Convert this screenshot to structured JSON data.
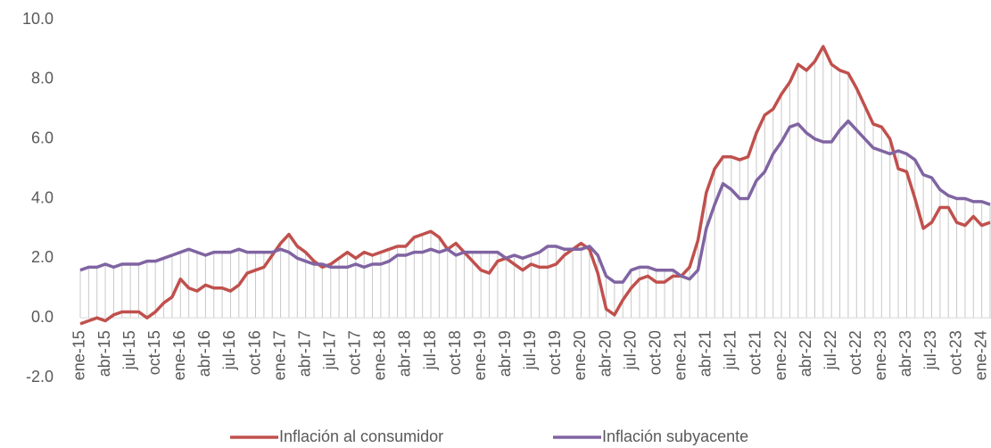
{
  "chart_data": {
    "type": "line",
    "categories": [
      "ene-15",
      null,
      null,
      "abr-15",
      null,
      null,
      "jul-15",
      null,
      null,
      "oct-15",
      null,
      null,
      "ene-16",
      null,
      null,
      "abr-16",
      null,
      null,
      "jul-16",
      null,
      null,
      "oct-16",
      null,
      null,
      "ene-17",
      null,
      null,
      "abr-17",
      null,
      null,
      "jul-17",
      null,
      null,
      "oct-17",
      null,
      null,
      "ene-18",
      null,
      null,
      "abr-18",
      null,
      null,
      "jul-18",
      null,
      null,
      "oct-18",
      null,
      null,
      "ene-19",
      null,
      null,
      "abr-19",
      null,
      null,
      "jul-19",
      null,
      null,
      "oct-19",
      null,
      null,
      "ene-20",
      null,
      null,
      "abr-20",
      null,
      null,
      "jul-20",
      null,
      null,
      "oct-20",
      null,
      null,
      "ene-21",
      null,
      null,
      "abr-21",
      null,
      null,
      "jul-21",
      null,
      null,
      "oct-21",
      null,
      null,
      "ene-22",
      null,
      null,
      "abr-22",
      null,
      null,
      "jul-22",
      null,
      null,
      "oct-22",
      null,
      null,
      "ene-23",
      null,
      null,
      "abr-23",
      null,
      null,
      "jul-23",
      null,
      null,
      "oct-23",
      null,
      null,
      "ene-24",
      null
    ],
    "series": [
      {
        "name": "Inflación al consumidor",
        "color": "#c0504d",
        "values": [
          -0.2,
          -0.1,
          0.0,
          -0.1,
          0.1,
          0.2,
          0.2,
          0.2,
          0.0,
          0.2,
          0.5,
          0.7,
          1.3,
          1.0,
          0.9,
          1.1,
          1.0,
          1.0,
          0.9,
          1.1,
          1.5,
          1.6,
          1.7,
          2.1,
          2.5,
          2.8,
          2.4,
          2.2,
          1.9,
          1.7,
          1.8,
          2.0,
          2.2,
          2.0,
          2.2,
          2.1,
          2.2,
          2.3,
          2.4,
          2.4,
          2.7,
          2.8,
          2.9,
          2.7,
          2.3,
          2.5,
          2.2,
          1.9,
          1.6,
          1.5,
          1.9,
          2.0,
          1.8,
          1.6,
          1.8,
          1.7,
          1.7,
          1.8,
          2.1,
          2.3,
          2.5,
          2.3,
          1.5,
          0.3,
          0.1,
          0.6,
          1.0,
          1.3,
          1.4,
          1.2,
          1.2,
          1.4,
          1.4,
          1.7,
          2.6,
          4.2,
          5.0,
          5.4,
          5.4,
          5.3,
          5.4,
          6.2,
          6.8,
          7.0,
          7.5,
          7.9,
          8.5,
          8.3,
          8.6,
          9.1,
          8.5,
          8.3,
          8.2,
          7.7,
          7.1,
          6.5,
          6.4,
          6.0,
          5.0,
          4.9,
          4.0,
          3.0,
          3.2,
          3.7,
          3.7,
          3.2,
          3.1,
          3.4,
          3.1,
          3.2
        ]
      },
      {
        "name": "Inflación subyacente",
        "color": "#8064a2",
        "values": [
          1.6,
          1.7,
          1.7,
          1.8,
          1.7,
          1.8,
          1.8,
          1.8,
          1.9,
          1.9,
          2.0,
          2.1,
          2.2,
          2.3,
          2.2,
          2.1,
          2.2,
          2.2,
          2.2,
          2.3,
          2.2,
          2.2,
          2.2,
          2.2,
          2.3,
          2.2,
          2.0,
          1.9,
          1.8,
          1.8,
          1.7,
          1.7,
          1.7,
          1.8,
          1.7,
          1.8,
          1.8,
          1.9,
          2.1,
          2.1,
          2.2,
          2.2,
          2.3,
          2.2,
          2.3,
          2.1,
          2.2,
          2.2,
          2.2,
          2.2,
          2.2,
          2.0,
          2.1,
          2.0,
          2.1,
          2.2,
          2.4,
          2.4,
          2.3,
          2.3,
          2.3,
          2.4,
          2.1,
          1.4,
          1.2,
          1.2,
          1.6,
          1.7,
          1.7,
          1.6,
          1.6,
          1.6,
          1.4,
          1.3,
          1.6,
          3.0,
          3.8,
          4.5,
          4.3,
          4.0,
          4.0,
          4.6,
          4.9,
          5.5,
          5.9,
          6.4,
          6.5,
          6.2,
          6.0,
          5.9,
          5.9,
          6.3,
          6.6,
          6.3,
          6.0,
          5.7,
          5.6,
          5.5,
          5.6,
          5.5,
          5.3,
          4.8,
          4.7,
          4.3,
          4.1,
          4.0,
          4.0,
          3.9,
          3.9,
          3.8
        ]
      }
    ],
    "ylim": [
      -2,
      10
    ],
    "yticks": [
      {
        "value": -2,
        "label": "-2.0"
      },
      {
        "value": 0,
        "label": "0.0"
      },
      {
        "value": 2,
        "label": "2.0"
      },
      {
        "value": 4,
        "label": "4.0"
      },
      {
        "value": 6,
        "label": "6.0"
      },
      {
        "value": 8,
        "label": "8.0"
      },
      {
        "value": 10,
        "label": "10.0"
      }
    ],
    "drop_lines": true,
    "legend": "bottom"
  }
}
